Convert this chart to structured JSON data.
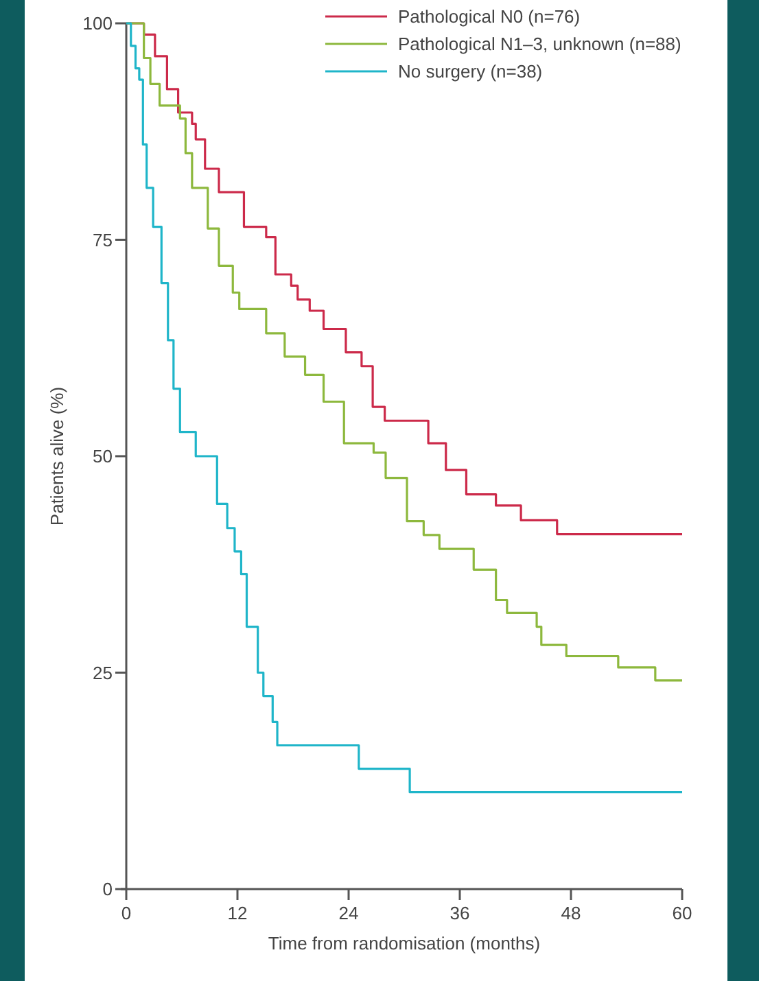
{
  "chart_data": {
    "type": "step",
    "xlabel": "Time from randomisation (months)",
    "ylabel": "Patients alive (%)",
    "xlim": [
      0,
      60
    ],
    "ylim": [
      0,
      100
    ],
    "xticks": [
      0,
      12,
      24,
      36,
      48,
      60
    ],
    "yticks": [
      0,
      25,
      50,
      75,
      100
    ],
    "legend": "top right",
    "grid": false,
    "series": [
      {
        "name": "Pathological N0 (n=76)",
        "color": "#cc2a4a",
        "x": [
          0,
          1.9,
          3.1,
          4.4,
          5.6,
          7.1,
          7.5,
          8.5,
          10,
          12.7,
          15.1,
          16.1,
          17.8,
          18.5,
          19.8,
          21.3,
          23.7,
          25.4,
          26.6,
          27.9,
          32.6,
          34.5,
          36.7,
          39.9,
          42.6,
          46.5,
          60
        ],
        "values": [
          100,
          98.7,
          96.2,
          92.4,
          89.7,
          88.4,
          86.6,
          83.2,
          80.5,
          76.5,
          75.3,
          71,
          69.7,
          68.1,
          66.8,
          64.7,
          62,
          60.4,
          55.7,
          54.1,
          51.5,
          48.4,
          45.6,
          44.3,
          42.6,
          41,
          41
        ]
      },
      {
        "name": "Pathological N1–3, unknown (n=88)",
        "color": "#8db83d",
        "x": [
          0,
          1.9,
          2.6,
          3.6,
          5.8,
          6.4,
          7.1,
          8.8,
          10,
          11.5,
          12.2,
          15.1,
          17.1,
          19.3,
          21.3,
          23.5,
          26.7,
          28,
          30.3,
          32.1,
          33.8,
          37.5,
          39.9,
          41.1,
          44.3,
          44.8,
          47.5,
          53.1,
          57.1,
          60
        ],
        "values": [
          100,
          96,
          93,
          90.5,
          89,
          85,
          81,
          76.3,
          72,
          68.9,
          67,
          64.2,
          61.5,
          59.4,
          56.3,
          51.5,
          50.4,
          47.5,
          42.5,
          40.9,
          39.3,
          36.9,
          33.4,
          31.9,
          30.3,
          28.2,
          26.9,
          25.6,
          24.1,
          24.1
        ]
      },
      {
        "name": "No surgery (n=38)",
        "color": "#1fb5c9",
        "x": [
          0,
          0.5,
          1,
          1.4,
          1.8,
          2.2,
          2.9,
          3.8,
          4.5,
          5.1,
          5.8,
          7.5,
          9.8,
          10.9,
          11.7,
          12.4,
          13,
          14.2,
          14.8,
          15.8,
          16.3,
          25.1,
          30.6,
          60
        ],
        "values": [
          100,
          97.4,
          94.8,
          93.5,
          86,
          81,
          76.5,
          70,
          63.4,
          57.8,
          52.8,
          50,
          44.5,
          41.7,
          39,
          36.4,
          30.3,
          25,
          22.3,
          19.3,
          16.6,
          13.9,
          11.2,
          11.2
        ]
      }
    ]
  }
}
